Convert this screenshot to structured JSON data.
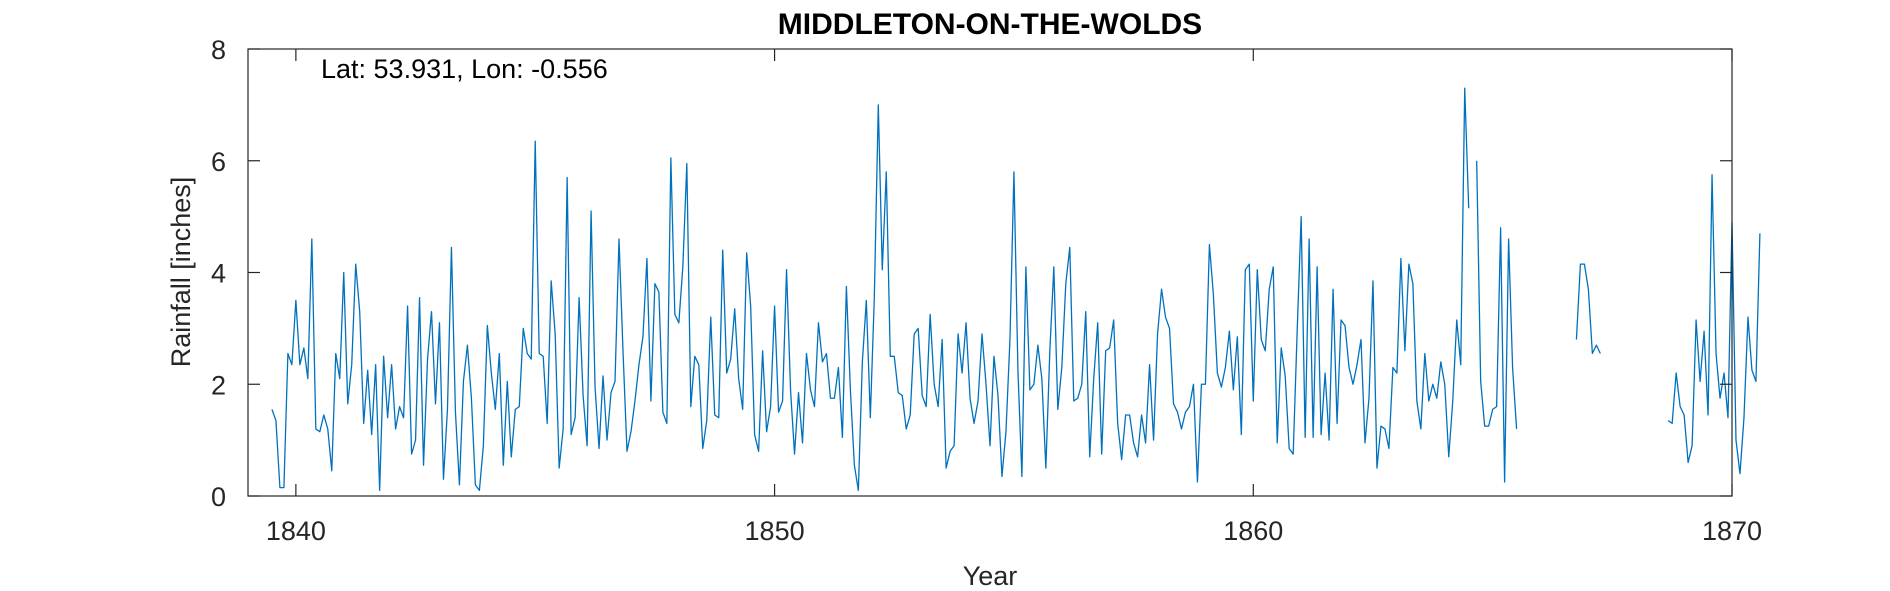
{
  "chart_data": {
    "type": "line",
    "title": "MIDDLETON-ON-THE-WOLDS",
    "annotation": "Lat: 53.931, Lon: -0.556",
    "xlabel": "Year",
    "ylabel": "Rainfall [inches]",
    "xlim": [
      1839,
      1870
    ],
    "ylim": [
      0,
      8
    ],
    "xticks": [
      1840,
      1850,
      1860,
      1870
    ],
    "yticks": [
      0,
      2,
      4,
      6,
      8
    ],
    "grid": false,
    "series": [
      {
        "color": "#0072BD",
        "x_start": 1839.5,
        "x_step_months": 1,
        "values": [
          1.55,
          1.35,
          0.15,
          0.15,
          2.55,
          2.35,
          3.5,
          2.35,
          2.65,
          2.1,
          4.6,
          1.2,
          1.15,
          1.45,
          1.2,
          0.45,
          2.55,
          2.1,
          4.0,
          1.65,
          2.35,
          4.15,
          3.3,
          1.3,
          2.25,
          1.1,
          2.35,
          0.1,
          2.5,
          1.4,
          2.35,
          1.2,
          1.6,
          1.4,
          3.4,
          0.75,
          1.0,
          3.55,
          0.55,
          2.45,
          3.3,
          1.65,
          3.1,
          0.3,
          1.55,
          4.45,
          1.5,
          0.2,
          2.05,
          2.7,
          1.75,
          0.2,
          0.1,
          0.9,
          3.05,
          2.2,
          1.55,
          2.55,
          0.55,
          2.05,
          0.7,
          1.55,
          1.6,
          3.0,
          2.55,
          2.45,
          6.35,
          2.55,
          2.5,
          1.3,
          3.85,
          2.9,
          0.5,
          1.2,
          5.7,
          1.1,
          1.4,
          3.55,
          1.8,
          0.9,
          5.1,
          1.95,
          0.85,
          2.15,
          1.0,
          1.85,
          2.05,
          4.6,
          2.6,
          0.8,
          1.15,
          1.7,
          2.35,
          2.85,
          4.25,
          1.7,
          3.8,
          3.65,
          1.5,
          1.3,
          6.05,
          3.25,
          3.1,
          4.1,
          5.95,
          1.6,
          2.5,
          2.35,
          0.85,
          1.35,
          3.2,
          1.45,
          1.4,
          4.4,
          2.2,
          2.45,
          3.35,
          2.1,
          1.55,
          4.35,
          3.4,
          1.1,
          0.8,
          2.6,
          1.15,
          1.6,
          3.4,
          1.5,
          1.7,
          4.05,
          1.9,
          0.75,
          1.85,
          0.95,
          2.55,
          1.9,
          1.6,
          3.1,
          2.4,
          2.55,
          1.75,
          1.75,
          2.3,
          1.05,
          3.75,
          1.9,
          0.55,
          0.1,
          2.4,
          3.5,
          1.4,
          3.55,
          7.0,
          4.05,
          5.8,
          2.5,
          2.5,
          1.85,
          1.8,
          1.2,
          1.45,
          2.9,
          3.0,
          1.8,
          1.6,
          3.25,
          2.0,
          1.6,
          2.8,
          0.5,
          0.8,
          0.9,
          2.9,
          2.2,
          3.1,
          1.75,
          1.3,
          1.7,
          2.9,
          2.0,
          0.9,
          2.5,
          1.8,
          0.35,
          1.15,
          2.8,
          5.8,
          2.25,
          0.35,
          4.1,
          1.9,
          2.0,
          2.7,
          2.1,
          0.5,
          2.6,
          4.1,
          1.55,
          2.3,
          3.8,
          4.45,
          1.7,
          1.75,
          2.0,
          3.3,
          0.7,
          2.1,
          3.1,
          0.75,
          2.6,
          2.65,
          3.15,
          1.3,
          0.65,
          1.45,
          1.45,
          0.95,
          0.7,
          1.45,
          0.95,
          2.35,
          1.0,
          2.9,
          3.7,
          3.2,
          3.0,
          1.65,
          1.5,
          1.2,
          1.5,
          1.6,
          2.0,
          0.25,
          2.0,
          2.0,
          4.5,
          3.6,
          2.2,
          1.95,
          2.3,
          2.95,
          1.9,
          2.85,
          1.1,
          4.05,
          4.15,
          1.7,
          4.05,
          2.8,
          2.6,
          3.7,
          4.1,
          0.95,
          2.65,
          2.15,
          0.85,
          0.75,
          2.95,
          5.0,
          1.05,
          4.6,
          1.05,
          4.1,
          1.1,
          2.2,
          1.0,
          3.7,
          1.3,
          3.15,
          3.05,
          2.3,
          2.0,
          2.35,
          2.8,
          0.95,
          1.75,
          3.85,
          0.5,
          1.25,
          1.2,
          0.85,
          2.3,
          2.2,
          4.25,
          2.6,
          4.15,
          3.8,
          1.7,
          1.2,
          2.55,
          1.7,
          2.0,
          1.75,
          2.4,
          2.0,
          0.7,
          1.7,
          3.15,
          2.35,
          7.3,
          5.15,
          null,
          6.0,
          2.05,
          1.25,
          1.25,
          1.55,
          1.6,
          4.8,
          0.25,
          4.6,
          2.3,
          1.2,
          null,
          null,
          null,
          null,
          null,
          null,
          null,
          null,
          null,
          null,
          null,
          null,
          null,
          null,
          2.8,
          4.15,
          4.15,
          3.7,
          2.55,
          2.7,
          2.55,
          null,
          null,
          null,
          null,
          null,
          null,
          null,
          null,
          null,
          null,
          null,
          null,
          null,
          null,
          null,
          null,
          1.35,
          1.3,
          2.2,
          1.6,
          1.45,
          0.6,
          0.9,
          3.15,
          2.05,
          2.95,
          1.45,
          5.75,
          2.55,
          1.75,
          2.2,
          1.4,
          4.9,
          1.0,
          0.4,
          1.4,
          3.2,
          2.25,
          2.05,
          4.7
        ]
      }
    ]
  }
}
